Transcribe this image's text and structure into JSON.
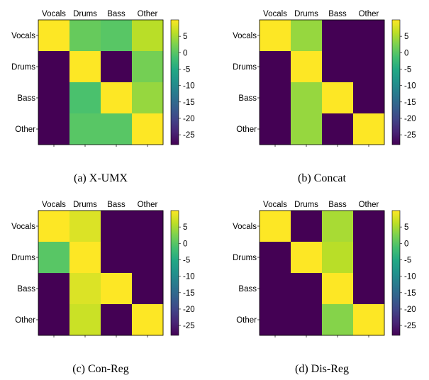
{
  "figure": {
    "background": "#ffffff",
    "colormap": "viridis",
    "colorbar_range": [
      -28,
      10
    ]
  },
  "chart_data": [
    {
      "type": "heatmap",
      "caption": "(a) X-UMX",
      "rows": [
        "Vocals",
        "Drums",
        "Bass",
        "Other"
      ],
      "columns": [
        "Vocals",
        "Drums",
        "Bass",
        "Other"
      ],
      "values": [
        [
          10,
          1,
          0,
          6
        ],
        [
          -28,
          10,
          -28,
          2
        ],
        [
          -28,
          -1,
          10,
          4
        ],
        [
          -28,
          0,
          0,
          10
        ]
      ],
      "colorbar_ticks": [
        5,
        0,
        -5,
        -10,
        -15,
        -20,
        -25
      ]
    },
    {
      "type": "heatmap",
      "caption": "(b) Concat",
      "rows": [
        "Vocals",
        "Drums",
        "Bass",
        "Other"
      ],
      "columns": [
        "Vocals",
        "Drums",
        "Bass",
        "Other"
      ],
      "values": [
        [
          10,
          4,
          -28,
          -28
        ],
        [
          -28,
          10,
          -28,
          -28
        ],
        [
          -28,
          4,
          10,
          -28
        ],
        [
          -28,
          4,
          -28,
          10
        ]
      ],
      "colorbar_ticks": [
        5,
        0,
        -5,
        -10,
        -15,
        -20,
        -25
      ]
    },
    {
      "type": "heatmap",
      "caption": "(c) Con-Reg",
      "rows": [
        "Vocals",
        "Drums",
        "Bass",
        "Other"
      ],
      "columns": [
        "Vocals",
        "Drums",
        "Bass",
        "Other"
      ],
      "values": [
        [
          10,
          8,
          -28,
          -28
        ],
        [
          0,
          10,
          -28,
          -28
        ],
        [
          -28,
          8,
          10,
          -28
        ],
        [
          -28,
          7,
          -28,
          10
        ]
      ],
      "colorbar_ticks": [
        5,
        0,
        -5,
        -10,
        -15,
        -20,
        -25
      ]
    },
    {
      "type": "heatmap",
      "caption": "(d) Dis-Reg",
      "rows": [
        "Vocals",
        "Drums",
        "Bass",
        "Other"
      ],
      "columns": [
        "Vocals",
        "Drums",
        "Bass",
        "Other"
      ],
      "values": [
        [
          10,
          -28,
          5,
          -28
        ],
        [
          -28,
          10,
          6,
          -28
        ],
        [
          -28,
          -28,
          10,
          -28
        ],
        [
          -28,
          -28,
          3,
          10
        ]
      ],
      "colorbar_ticks": [
        5,
        0,
        -5,
        -10,
        -15,
        -20,
        -25
      ]
    }
  ]
}
